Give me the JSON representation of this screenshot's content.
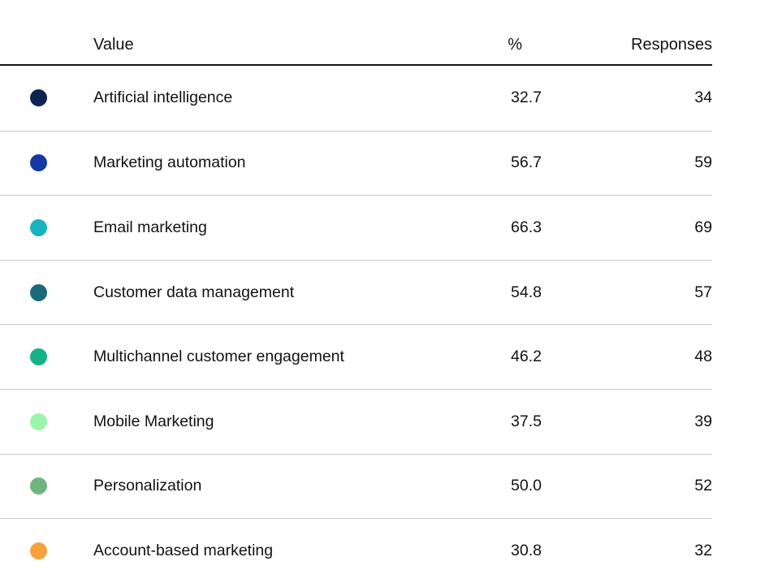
{
  "table": {
    "header": {
      "value": "Value",
      "percent": "%",
      "responses": "Responses"
    },
    "rows": [
      {
        "label": "Artificial intelligence",
        "percent": "32.7",
        "responses": "34",
        "color": "#0e2350"
      },
      {
        "label": "Marketing automation",
        "percent": "56.7",
        "responses": "59",
        "color": "#1538a5"
      },
      {
        "label": "Email marketing",
        "percent": "66.3",
        "responses": "69",
        "color": "#18b3be"
      },
      {
        "label": "Customer data management",
        "percent": "54.8",
        "responses": "57",
        "color": "#1a6a7a"
      },
      {
        "label": "Multichannel customer engagement",
        "percent": "46.2",
        "responses": "48",
        "color": "#15b289"
      },
      {
        "label": "Mobile Marketing",
        "percent": "37.5",
        "responses": "39",
        "color": "#9af5ad"
      },
      {
        "label": "Personalization",
        "percent": "50.0",
        "responses": "52",
        "color": "#6fb47d"
      },
      {
        "label": "Account-based marketing",
        "percent": "30.8",
        "responses": "32",
        "color": "#f8a13c"
      }
    ]
  },
  "chart_data": {
    "type": "table",
    "title": "",
    "columns": [
      "Value",
      "%",
      "Responses"
    ],
    "categories": [
      "Artificial intelligence",
      "Marketing automation",
      "Email marketing",
      "Customer data management",
      "Multichannel customer engagement",
      "Mobile Marketing",
      "Personalization",
      "Account-based marketing"
    ],
    "series": [
      {
        "name": "%",
        "values": [
          32.7,
          56.7,
          66.3,
          54.8,
          46.2,
          37.5,
          50.0,
          30.8
        ]
      },
      {
        "name": "Responses",
        "values": [
          34,
          59,
          69,
          57,
          48,
          39,
          52,
          32
        ]
      }
    ],
    "legend_colors": [
      "#0e2350",
      "#1538a5",
      "#18b3be",
      "#1a6a7a",
      "#15b289",
      "#9af5ad",
      "#6fb47d",
      "#f8a13c"
    ],
    "layout": {
      "grid": "horizontal-row-separators",
      "numeric_alignment": "right"
    }
  },
  "colors": {
    "background": "#ffffff",
    "text": "#121212",
    "header_rule": "#161616",
    "row_rule": "#c9c9c9"
  }
}
